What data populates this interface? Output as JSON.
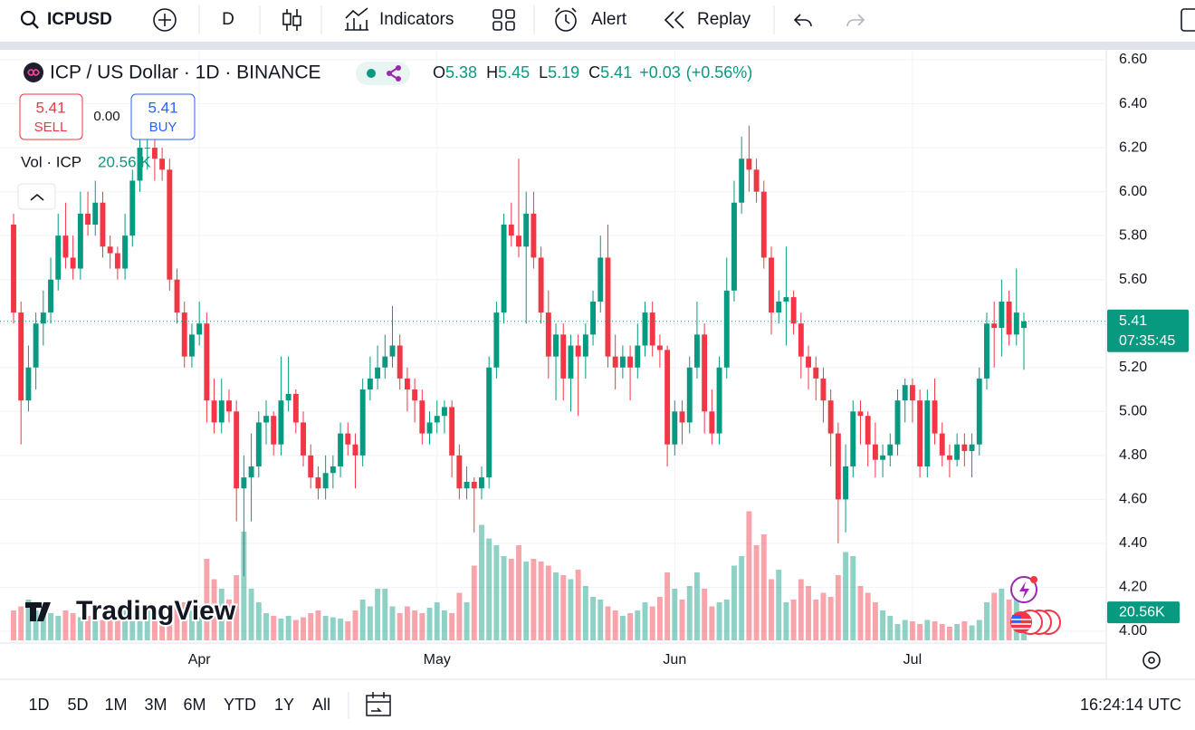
{
  "toolbar": {
    "symbol": "ICPUSD",
    "interval": "D",
    "indicators": "Indicators",
    "alert": "Alert",
    "replay": "Replay"
  },
  "chart_data": {
    "type": "candlestick",
    "title": "ICP / US Dollar · 1D · BINANCE",
    "ohlc_letters": [
      "O",
      "H",
      "L",
      "C"
    ],
    "change": "+0.03",
    "change_pct": "(+0.56%)",
    "trade": {
      "sell_price": "5.41",
      "sell": "SELL",
      "spread": "0.00",
      "buy_price": "5.41",
      "buy": "BUY"
    },
    "volume_title": "Vol · ICP",
    "last_volume_label": "20.56 K",
    "last_volume_axis_label": "20.56K",
    "countdown": "07:35:45",
    "logo": "TradingView",
    "up_color": "#089981",
    "down_color": "#f23645",
    "ylim": [
      4.0,
      6.6
    ],
    "yticks": [
      {
        "value": 4.0,
        "label": "4.00"
      },
      {
        "value": 4.2,
        "label": "4.20"
      },
      {
        "value": 4.4,
        "label": "4.40"
      },
      {
        "value": 4.6,
        "label": "4.60"
      },
      {
        "value": 4.8,
        "label": "4.80"
      },
      {
        "value": 5.0,
        "label": "5.00"
      },
      {
        "value": 5.2,
        "label": "5.20"
      },
      {
        "value": 5.4,
        "label": "5.40"
      },
      {
        "value": 5.6,
        "label": "5.60"
      },
      {
        "value": 5.8,
        "label": "5.80"
      },
      {
        "value": 6.0,
        "label": "6.00"
      },
      {
        "value": 6.2,
        "label": "6.20"
      },
      {
        "value": 6.4,
        "label": "6.40"
      },
      {
        "value": 6.6,
        "label": "6.60"
      }
    ],
    "xticks": [
      {
        "value": 25,
        "label": "Apr"
      },
      {
        "value": 57,
        "label": "May"
      },
      {
        "value": 89,
        "label": "Jun"
      },
      {
        "value": 121,
        "label": "Jul"
      }
    ],
    "volume_lim": [
      0,
      100
    ],
    "candles": [
      [
        5.85,
        5.9,
        5.4,
        5.45
      ],
      [
        5.45,
        5.5,
        4.85,
        5.05
      ],
      [
        5.05,
        5.3,
        5.0,
        5.2
      ],
      [
        5.2,
        5.45,
        5.1,
        5.4
      ],
      [
        5.4,
        5.55,
        5.3,
        5.45
      ],
      [
        5.45,
        5.7,
        5.4,
        5.6
      ],
      [
        5.6,
        5.9,
        5.55,
        5.8
      ],
      [
        5.8,
        5.95,
        5.65,
        5.7
      ],
      [
        5.7,
        5.8,
        5.6,
        5.65
      ],
      [
        5.65,
        6.0,
        5.6,
        5.9
      ],
      [
        5.9,
        6.0,
        5.8,
        5.85
      ],
      [
        5.85,
        6.05,
        5.8,
        5.95
      ],
      [
        5.95,
        6.0,
        5.7,
        5.75
      ],
      [
        5.75,
        5.8,
        5.65,
        5.72
      ],
      [
        5.72,
        5.75,
        5.6,
        5.65
      ],
      [
        5.65,
        5.9,
        5.6,
        5.8
      ],
      [
        5.8,
        6.1,
        5.75,
        6.05
      ],
      [
        6.05,
        6.25,
        6.0,
        6.2
      ],
      [
        6.2,
        6.3,
        6.1,
        6.2
      ],
      [
        6.2,
        6.25,
        6.05,
        6.15
      ],
      [
        6.15,
        6.2,
        6.05,
        6.1
      ],
      [
        6.1,
        6.15,
        5.55,
        5.6
      ],
      [
        5.6,
        5.65,
        5.4,
        5.45
      ],
      [
        5.45,
        5.5,
        5.2,
        5.25
      ],
      [
        5.25,
        5.4,
        5.2,
        5.35
      ],
      [
        5.35,
        5.5,
        5.3,
        5.4
      ],
      [
        5.4,
        5.45,
        4.95,
        5.05
      ],
      [
        5.05,
        5.15,
        4.9,
        4.95
      ],
      [
        4.95,
        5.15,
        4.9,
        5.05
      ],
      [
        5.05,
        5.1,
        4.95,
        5.0
      ],
      [
        5.0,
        5.05,
        4.5,
        4.65
      ],
      [
        4.65,
        4.8,
        4.25,
        4.7
      ],
      [
        4.7,
        4.9,
        4.5,
        4.75
      ],
      [
        4.75,
        5.0,
        4.7,
        4.95
      ],
      [
        4.95,
        5.05,
        4.85,
        4.98
      ],
      [
        4.98,
        5.0,
        4.8,
        4.85
      ],
      [
        4.85,
        5.25,
        4.8,
        5.05
      ],
      [
        5.05,
        5.25,
        5.0,
        5.08
      ],
      [
        5.08,
        5.1,
        4.9,
        4.95
      ],
      [
        4.95,
        5.0,
        4.75,
        4.8
      ],
      [
        4.8,
        4.85,
        4.65,
        4.7
      ],
      [
        4.7,
        4.75,
        4.6,
        4.65
      ],
      [
        4.65,
        4.8,
        4.6,
        4.72
      ],
      [
        4.72,
        4.8,
        4.65,
        4.75
      ],
      [
        4.75,
        4.95,
        4.7,
        4.9
      ],
      [
        4.9,
        4.95,
        4.8,
        4.85
      ],
      [
        4.85,
        4.9,
        4.65,
        4.8
      ],
      [
        4.8,
        5.15,
        4.75,
        5.1
      ],
      [
        5.1,
        5.25,
        5.05,
        5.15
      ],
      [
        5.15,
        5.3,
        5.1,
        5.2
      ],
      [
        5.2,
        5.35,
        5.15,
        5.25
      ],
      [
        5.25,
        5.48,
        5.2,
        5.3
      ],
      [
        5.3,
        5.35,
        5.1,
        5.15
      ],
      [
        5.15,
        5.2,
        5.0,
        5.1
      ],
      [
        5.1,
        5.15,
        4.95,
        5.05
      ],
      [
        5.05,
        5.1,
        4.85,
        4.9
      ],
      [
        4.9,
        5.0,
        4.85,
        4.95
      ],
      [
        4.95,
        5.05,
        4.9,
        4.98
      ],
      [
        4.98,
        5.05,
        4.9,
        5.02
      ],
      [
        5.02,
        5.05,
        4.7,
        4.8
      ],
      [
        4.8,
        4.85,
        4.6,
        4.65
      ],
      [
        4.65,
        4.75,
        4.6,
        4.68
      ],
      [
        4.68,
        4.7,
        4.45,
        4.65
      ],
      [
        4.65,
        4.75,
        4.6,
        4.7
      ],
      [
        4.7,
        5.25,
        4.65,
        5.2
      ],
      [
        5.2,
        5.5,
        5.15,
        5.45
      ],
      [
        5.45,
        5.9,
        5.4,
        5.85
      ],
      [
        5.85,
        5.95,
        5.75,
        5.8
      ],
      [
        5.8,
        6.15,
        5.7,
        5.75
      ],
      [
        5.75,
        6.0,
        5.4,
        5.9
      ],
      [
        5.9,
        6.0,
        5.65,
        5.7
      ],
      [
        5.7,
        5.75,
        5.4,
        5.45
      ],
      [
        5.45,
        5.55,
        5.15,
        5.25
      ],
      [
        5.25,
        5.4,
        5.05,
        5.35
      ],
      [
        5.35,
        5.4,
        5.05,
        5.15
      ],
      [
        5.15,
        5.35,
        5.0,
        5.3
      ],
      [
        5.3,
        5.35,
        4.98,
        5.25
      ],
      [
        5.25,
        5.4,
        5.15,
        5.35
      ],
      [
        5.35,
        5.55,
        5.3,
        5.5
      ],
      [
        5.5,
        5.8,
        5.45,
        5.7
      ],
      [
        5.7,
        5.85,
        5.2,
        5.25
      ],
      [
        5.25,
        5.35,
        5.1,
        5.2
      ],
      [
        5.2,
        5.3,
        5.15,
        5.25
      ],
      [
        5.25,
        5.3,
        5.05,
        5.2
      ],
      [
        5.2,
        5.4,
        5.15,
        5.3
      ],
      [
        5.3,
        5.5,
        5.25,
        5.45
      ],
      [
        5.45,
        5.5,
        5.25,
        5.3
      ],
      [
        5.3,
        5.35,
        5.2,
        5.28
      ],
      [
        5.28,
        5.3,
        4.75,
        4.85
      ],
      [
        4.85,
        5.05,
        4.8,
        5.0
      ],
      [
        5.0,
        5.05,
        4.85,
        4.95
      ],
      [
        4.95,
        5.25,
        4.9,
        5.2
      ],
      [
        5.2,
        5.5,
        5.15,
        5.35
      ],
      [
        5.35,
        5.4,
        4.9,
        5.0
      ],
      [
        5.0,
        5.1,
        4.85,
        4.9
      ],
      [
        4.9,
        5.25,
        4.85,
        5.2
      ],
      [
        5.2,
        5.7,
        5.15,
        5.55
      ],
      [
        5.55,
        6.05,
        5.5,
        5.95
      ],
      [
        5.95,
        6.25,
        5.9,
        6.15
      ],
      [
        6.15,
        6.3,
        6.0,
        6.1
      ],
      [
        6.1,
        6.15,
        5.95,
        6.0
      ],
      [
        6.0,
        6.05,
        5.65,
        5.7
      ],
      [
        5.7,
        5.75,
        5.35,
        5.45
      ],
      [
        5.45,
        5.55,
        5.4,
        5.5
      ],
      [
        5.5,
        5.75,
        5.3,
        5.52
      ],
      [
        5.52,
        5.55,
        5.35,
        5.4
      ],
      [
        5.4,
        5.45,
        5.15,
        5.25
      ],
      [
        5.25,
        5.3,
        5.1,
        5.2
      ],
      [
        5.2,
        5.25,
        5.05,
        5.15
      ],
      [
        5.15,
        5.2,
        4.95,
        5.05
      ],
      [
        5.05,
        5.1,
        4.75,
        4.9
      ],
      [
        4.9,
        4.95,
        4.4,
        4.6
      ],
      [
        4.6,
        4.85,
        4.45,
        4.75
      ],
      [
        4.75,
        5.05,
        4.7,
        5.0
      ],
      [
        5.0,
        5.05,
        4.85,
        4.98
      ],
      [
        4.98,
        5.0,
        4.75,
        4.85
      ],
      [
        4.85,
        4.95,
        4.7,
        4.78
      ],
      [
        4.78,
        4.85,
        4.7,
        4.8
      ],
      [
        4.8,
        4.9,
        4.75,
        4.85
      ],
      [
        4.85,
        5.1,
        4.8,
        5.05
      ],
      [
        5.05,
        5.15,
        4.95,
        5.12
      ],
      [
        5.12,
        5.15,
        4.95,
        5.05
      ],
      [
        5.05,
        5.1,
        4.7,
        4.75
      ],
      [
        4.75,
        5.1,
        4.7,
        5.05
      ],
      [
        5.05,
        5.15,
        4.85,
        4.9
      ],
      [
        4.9,
        4.95,
        4.75,
        4.8
      ],
      [
        4.8,
        4.85,
        4.7,
        4.78
      ],
      [
        4.78,
        4.9,
        4.75,
        4.85
      ],
      [
        4.85,
        4.9,
        4.75,
        4.82
      ],
      [
        4.82,
        4.9,
        4.7,
        4.85
      ],
      [
        4.85,
        5.2,
        4.8,
        5.15
      ],
      [
        5.15,
        5.45,
        5.1,
        5.4
      ],
      [
        5.4,
        5.5,
        5.2,
        5.38
      ],
      [
        5.38,
        5.6,
        5.25,
        5.5
      ],
      [
        5.5,
        5.55,
        5.3,
        5.35
      ],
      [
        5.35,
        5.65,
        5.3,
        5.45
      ],
      [
        5.38,
        5.45,
        5.19,
        5.41
      ]
    ],
    "volumes": [
      22,
      25,
      30,
      22,
      24,
      20,
      18,
      22,
      20,
      17,
      18,
      20,
      15,
      17,
      16,
      22,
      20,
      25,
      22,
      20,
      26,
      24,
      30,
      28,
      22,
      25,
      60,
      45,
      38,
      30,
      48,
      80,
      38,
      28,
      20,
      18,
      16,
      18,
      15,
      17,
      20,
      22,
      18,
      17,
      16,
      14,
      22,
      30,
      25,
      38,
      38,
      25,
      20,
      25,
      22,
      20,
      24,
      28,
      22,
      20,
      35,
      28,
      55,
      85,
      75,
      70,
      62,
      60,
      70,
      58,
      60,
      58,
      55,
      50,
      48,
      45,
      52,
      40,
      32,
      30,
      25,
      22,
      18,
      20,
      22,
      28,
      25,
      32,
      50,
      38,
      30,
      40,
      50,
      38,
      25,
      28,
      30,
      55,
      62,
      95,
      70,
      78,
      45,
      52,
      28,
      30,
      45,
      40,
      30,
      35,
      32,
      48,
      65,
      62,
      40,
      35,
      28,
      22,
      18,
      12,
      15,
      14,
      12,
      15,
      14,
      12,
      10,
      12,
      14,
      11,
      15,
      28,
      35,
      38,
      30,
      35,
      20.56
    ]
  },
  "footer": {
    "ranges": [
      "1D",
      "5D",
      "1M",
      "3M",
      "6M",
      "YTD",
      "1Y",
      "All"
    ],
    "clock": "16:24:14 UTC"
  }
}
